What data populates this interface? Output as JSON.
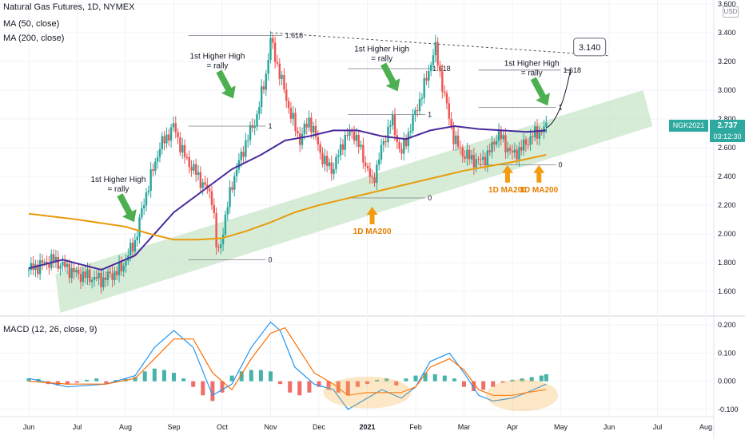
{
  "header": {
    "title": "Natural Gas Futures, 1D, NYMEX",
    "ma50_label": "MA (50, close)",
    "ma200_label": "MA (200, close)",
    "macd_label": "MACD (12, 26, close, 9)"
  },
  "price_tag": {
    "symbol": "NGK2021",
    "price": "2.737",
    "countdown": "03:12:30",
    "currency": "USD"
  },
  "colors": {
    "up": "#26a69a",
    "down": "#ef5350",
    "ma50": "#4a2a9c",
    "ma200": "#e89b0c",
    "channel": "#c8e6c9",
    "arrow_green": "#4caf50",
    "arrow_orange": "#f39c12",
    "macd": "#2196f3",
    "signal": "#ff6d00",
    "hist_up": "#26a69a",
    "hist_down": "#ef5350"
  },
  "chart_data": [
    {
      "type": "candlestick",
      "title": "Natural Gas Futures, 1D, NYMEX",
      "xaxis_ticks": [
        "Jun",
        "Jul",
        "Aug",
        "Sep",
        "Oct",
        "Nov",
        "Dec",
        "2021",
        "Feb",
        "Mar",
        "Apr",
        "May",
        "Jun",
        "Jul",
        "Aug"
      ],
      "yaxis_ticks": [
        "3.600",
        "3.400",
        "3.200",
        "3.000",
        "2.800",
        "2.600",
        "2.400",
        "2.200",
        "2.000",
        "1.800",
        "1.600"
      ],
      "ylim": [
        1.45,
        3.6
      ],
      "price_anchors": {
        "x": [
          0,
          0.5,
          1,
          1.5,
          1.9,
          2.2,
          2.4,
          2.7,
          3,
          3.2,
          3.5,
          3.8,
          3.9,
          4.2,
          4.5,
          4.7,
          4.9,
          5,
          5.2,
          5.4,
          5.6,
          5.8,
          6.1,
          6.3,
          6.5,
          6.7,
          6.9,
          7.1,
          7.3,
          7.5,
          7.7,
          8,
          8.2,
          8.4,
          8.6,
          8.8,
          9,
          9.3,
          9.5,
          9.7,
          10,
          10.2,
          10.4,
          10.6,
          10.7
        ],
        "y": [
          1.75,
          1.82,
          1.72,
          1.68,
          1.75,
          1.95,
          2.25,
          2.6,
          2.75,
          2.55,
          2.4,
          2.25,
          1.82,
          2.35,
          2.65,
          2.8,
          3.1,
          3.35,
          3.1,
          2.85,
          2.65,
          2.8,
          2.5,
          2.45,
          2.65,
          2.72,
          2.55,
          2.35,
          2.6,
          2.8,
          2.55,
          2.85,
          3.05,
          3.3,
          2.95,
          2.65,
          2.55,
          2.5,
          2.55,
          2.7,
          2.55,
          2.6,
          2.68,
          2.72,
          2.737
        ]
      },
      "series": [
        {
          "name": "MA (50, close)",
          "x": [
            0,
            0.7,
            1.5,
            2.2,
            3,
            3.6,
            4.2,
            4.8,
            5.3,
            5.8,
            6.3,
            6.8,
            7.3,
            7.8,
            8.3,
            8.8,
            9.3,
            9.8,
            10.3,
            10.7
          ],
          "y": [
            1.76,
            1.82,
            1.75,
            1.85,
            2.15,
            2.3,
            2.45,
            2.55,
            2.65,
            2.68,
            2.72,
            2.72,
            2.68,
            2.66,
            2.72,
            2.75,
            2.73,
            2.72,
            2.71,
            2.72
          ]
        },
        {
          "name": "MA (200, close)",
          "x": [
            0,
            1,
            2,
            2.5,
            3,
            3.5,
            4,
            4.5,
            5,
            5.5,
            6,
            6.5,
            7,
            7.5,
            8,
            8.5,
            9,
            9.5,
            10,
            10.7
          ],
          "y": [
            2.14,
            2.1,
            2.05,
            2.0,
            1.96,
            1.96,
            1.97,
            2.02,
            2.08,
            2.15,
            2.2,
            2.24,
            2.28,
            2.32,
            2.36,
            2.4,
            2.44,
            2.47,
            2.5,
            2.55
          ]
        }
      ],
      "projection": {
        "x": [
          10.7,
          11.2
        ],
        "y": [
          2.737,
          3.14
        ],
        "target_label": "3.140"
      },
      "annotations": [
        {
          "text": "1st Higher High\n= rally",
          "x": 1.85,
          "y": 2.36,
          "color": "#131722"
        },
        {
          "text": "1st Higher High\n= rally",
          "x": 3.9,
          "y": 3.22,
          "color": "#131722"
        },
        {
          "text": "1st Higher High\n= rally",
          "x": 7.3,
          "y": 3.27,
          "color": "#131722"
        },
        {
          "text": "1st Higher High\n= rally",
          "x": 10.4,
          "y": 3.17,
          "color": "#131722"
        },
        {
          "text": "1D MA200",
          "x": 7.1,
          "y": 2.0,
          "color": "#e67e00"
        },
        {
          "text": "1D MA200",
          "x": 9.9,
          "y": 2.29,
          "color": "#e67e00"
        },
        {
          "text": "1D MA200",
          "x": 10.55,
          "y": 2.29,
          "color": "#e67e00"
        }
      ],
      "fib_levels": [
        {
          "label": "1.618",
          "x0": 3.3,
          "x1": 5.25,
          "y": 3.38
        },
        {
          "label": "1",
          "x0": 3.3,
          "x1": 4.9,
          "y": 2.75
        },
        {
          "label": "0",
          "x0": 3.3,
          "x1": 4.9,
          "y": 1.82
        },
        {
          "label": "1.618",
          "x0": 6.6,
          "x1": 8.3,
          "y": 3.15
        },
        {
          "label": "1",
          "x0": 6.6,
          "x1": 8.2,
          "y": 2.83
        },
        {
          "label": "0",
          "x0": 6.6,
          "x1": 8.2,
          "y": 2.25
        },
        {
          "label": "1.618",
          "x0": 9.3,
          "x1": 11.0,
          "y": 3.14
        },
        {
          "label": "1",
          "x0": 9.3,
          "x1": 10.9,
          "y": 2.88
        },
        {
          "label": "0",
          "x0": 9.3,
          "x1": 10.9,
          "y": 2.48
        }
      ]
    },
    {
      "type": "line",
      "title": "MACD (12, 26, close, 9)",
      "yaxis_ticks": [
        "0.200",
        "0.100",
        "0.000",
        "-0.100"
      ],
      "ylim": [
        -0.12,
        0.22
      ],
      "series": [
        {
          "name": "MACD",
          "x": [
            0,
            0.8,
            1.6,
            2.2,
            2.6,
            3.0,
            3.4,
            3.8,
            4.2,
            4.6,
            5.0,
            5.2,
            5.5,
            5.9,
            6.3,
            6.6,
            7.0,
            7.3,
            7.7,
            8.0,
            8.3,
            8.7,
            9.0,
            9.3,
            9.6,
            10.0,
            10.3,
            10.7
          ],
          "y": [
            0.01,
            -0.02,
            -0.01,
            0.02,
            0.12,
            0.18,
            0.12,
            -0.05,
            -0.01,
            0.12,
            0.21,
            0.18,
            0.05,
            -0.01,
            -0.03,
            -0.1,
            -0.06,
            -0.03,
            -0.06,
            -0.02,
            0.07,
            0.1,
            0.03,
            -0.05,
            -0.07,
            -0.06,
            -0.04,
            -0.01
          ]
        },
        {
          "name": "Signal",
          "x": [
            0,
            0.8,
            1.6,
            2.2,
            2.6,
            3.0,
            3.4,
            3.8,
            4.2,
            4.6,
            5.0,
            5.3,
            5.6,
            5.9,
            6.3,
            6.6,
            7.0,
            7.3,
            7.7,
            8.0,
            8.3,
            8.7,
            9.0,
            9.3,
            9.6,
            10.0,
            10.3,
            10.7
          ],
          "y": [
            0.0,
            -0.01,
            -0.01,
            0.01,
            0.08,
            0.15,
            0.15,
            0.03,
            -0.03,
            0.08,
            0.17,
            0.19,
            0.11,
            0.03,
            -0.01,
            -0.05,
            -0.04,
            -0.04,
            -0.04,
            -0.02,
            0.05,
            0.08,
            0.04,
            -0.03,
            -0.05,
            -0.05,
            -0.04,
            -0.03
          ]
        },
        {
          "name": "Histogram",
          "x": [
            0.0,
            0.2,
            0.4,
            0.6,
            0.8,
            1.0,
            1.2,
            1.4,
            1.6,
            1.8,
            2.0,
            2.2,
            2.4,
            2.6,
            2.8,
            3.0,
            3.2,
            3.4,
            3.6,
            3.8,
            4.0,
            4.2,
            4.4,
            4.6,
            4.8,
            5.0,
            5.2,
            5.4,
            5.6,
            5.8,
            6.0,
            6.2,
            6.4,
            6.6,
            6.8,
            7.0,
            7.2,
            7.4,
            7.6,
            7.8,
            8.0,
            8.2,
            8.4,
            8.6,
            8.8,
            9.0,
            9.2,
            9.4,
            9.6,
            9.8,
            10.0,
            10.2,
            10.4,
            10.6,
            10.7
          ],
          "y": [
            0.01,
            0.008,
            -0.01,
            -0.015,
            -0.012,
            -0.005,
            0.005,
            0.01,
            -0.008,
            0.004,
            0.008,
            0.015,
            0.035,
            0.045,
            0.04,
            0.03,
            0.01,
            -0.02,
            -0.05,
            -0.07,
            -0.04,
            0.02,
            0.035,
            0.04,
            0.04,
            0.035,
            -0.01,
            -0.04,
            -0.05,
            -0.04,
            -0.02,
            -0.03,
            -0.04,
            -0.05,
            -0.02,
            -0.01,
            0.005,
            0.01,
            -0.015,
            0.01,
            0.02,
            0.03,
            0.025,
            0.02,
            0.01,
            -0.02,
            -0.035,
            -0.03,
            -0.02,
            -0.005,
            0.005,
            0.01,
            0.015,
            0.02,
            0.025
          ]
        }
      ]
    }
  ]
}
